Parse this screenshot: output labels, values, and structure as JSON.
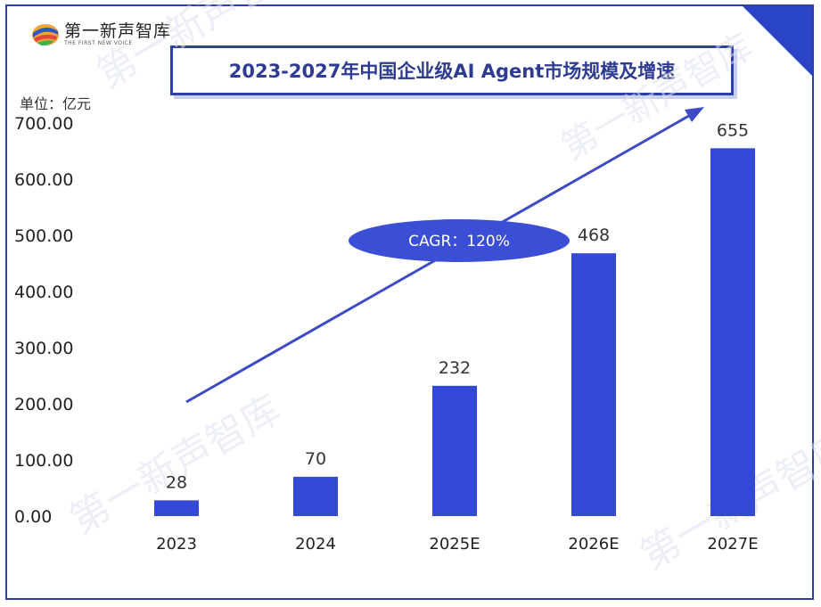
{
  "brand": {
    "name": "第一新声智库",
    "subtitle": "THE FIRST NEW VOICE"
  },
  "colors": {
    "bar": "#3349d6",
    "frame": "#2f3fa8",
    "title": "#2d3b91",
    "arrow": "#3f4bc4",
    "ellipse": "#3a4fd6"
  },
  "chart_data": {
    "type": "bar",
    "title": "2023-2027年中国企业级AI Agent市场规模及增速",
    "unit_label": "单位：亿元",
    "categories": [
      "2023",
      "2024",
      "2025E",
      "2026E",
      "2027E"
    ],
    "values": [
      28,
      70,
      232,
      468,
      655
    ],
    "value_labels": [
      "28",
      "70",
      "232",
      "468",
      "655"
    ],
    "ylim": [
      0,
      700
    ],
    "yticks": [
      "0.00",
      "100.00",
      "200.00",
      "300.00",
      "400.00",
      "500.00",
      "600.00",
      "700.00"
    ],
    "annotation": "CAGR：120%",
    "grid": false
  }
}
